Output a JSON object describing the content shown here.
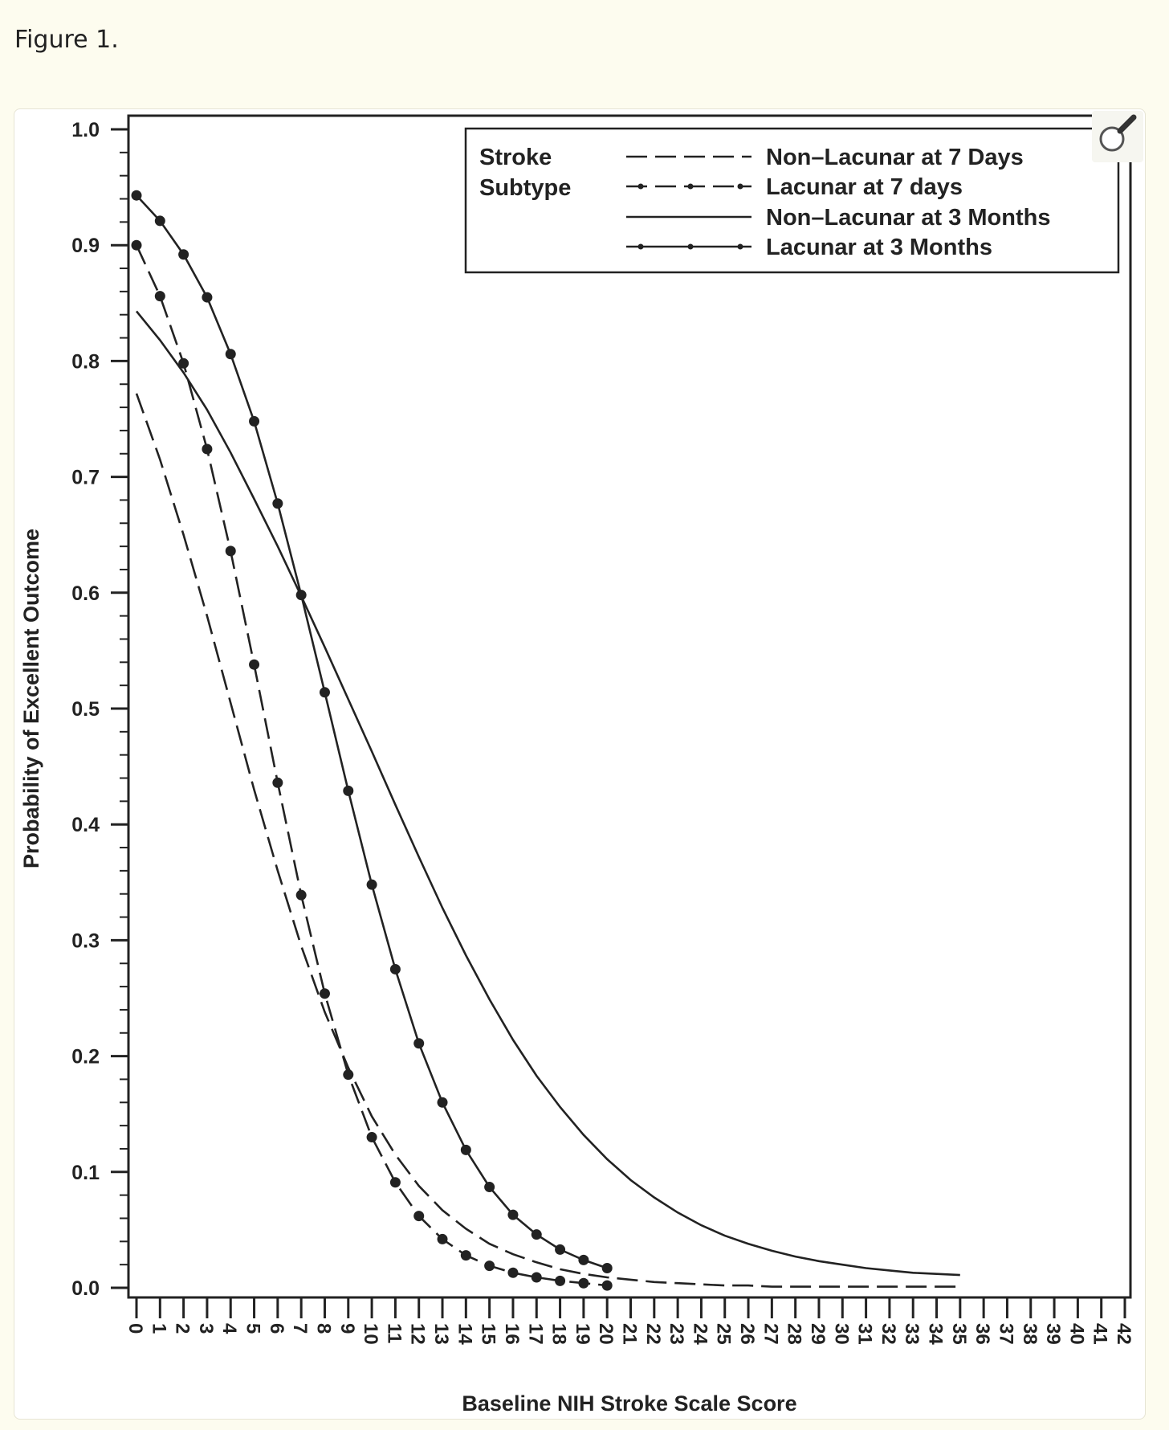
{
  "figure_label": "Figure 1.",
  "zoom_icon": "magnifier-icon",
  "colors": {
    "page_background": "#fdfcef",
    "card_background": "#ffffff",
    "ink": "#222222"
  },
  "chart_data": {
    "type": "line",
    "title": "",
    "xlabel": "Baseline NIH Stroke Scale Score",
    "ylabel": "Probability of Excellent Outcome",
    "xlim": [
      0,
      42
    ],
    "ylim": [
      0,
      1
    ],
    "x_ticks": [
      0,
      1,
      2,
      3,
      4,
      5,
      6,
      7,
      8,
      9,
      10,
      11,
      12,
      13,
      14,
      15,
      16,
      17,
      18,
      19,
      20,
      21,
      22,
      23,
      24,
      25,
      26,
      27,
      28,
      29,
      30,
      31,
      32,
      33,
      34,
      35,
      36,
      37,
      38,
      39,
      40,
      41,
      42
    ],
    "y_ticks": [
      "0.0",
      "0.1",
      "0.2",
      "0.3",
      "0.4",
      "0.5",
      "0.6",
      "0.7",
      "0.8",
      "0.9",
      "1.0"
    ],
    "legend": {
      "title_lines": [
        "Stroke",
        "Subtype"
      ],
      "position": "top-right",
      "entries": [
        "Non–Lacunar at 7 Days",
        "Lacunar at 7 days",
        "Non–Lacunar at 3 Months",
        "Lacunar at 3 Months"
      ]
    },
    "series": [
      {
        "name": "Non–Lacunar at 7 Days",
        "style": "dashed",
        "x": [
          0,
          1,
          2,
          3,
          4,
          5,
          6,
          7,
          8,
          9,
          10,
          11,
          12,
          13,
          14,
          15,
          16,
          17,
          18,
          19,
          20,
          21,
          22,
          23,
          24,
          25,
          26,
          27,
          28,
          29,
          30,
          31,
          32,
          33,
          34,
          35
        ],
        "values": [
          0.772,
          0.715,
          0.65,
          0.58,
          0.505,
          0.43,
          0.36,
          0.295,
          0.238,
          0.19,
          0.148,
          0.115,
          0.088,
          0.067,
          0.051,
          0.038,
          0.029,
          0.022,
          0.016,
          0.012,
          0.009,
          0.007,
          0.005,
          0.004,
          0.003,
          0.002,
          0.002,
          0.001,
          0.001,
          0.001,
          0.001,
          0.001,
          0.001,
          0.001,
          0.001,
          0.001
        ]
      },
      {
        "name": "Lacunar at 7 days",
        "style": "dashed-dots",
        "x": [
          0,
          1,
          2,
          3,
          4,
          5,
          6,
          7,
          8,
          9,
          10,
          11,
          12,
          13,
          14,
          15,
          16,
          17,
          18,
          19,
          20
        ],
        "values": [
          0.9,
          0.856,
          0.798,
          0.724,
          0.636,
          0.538,
          0.436,
          0.339,
          0.254,
          0.184,
          0.13,
          0.091,
          0.062,
          0.042,
          0.028,
          0.019,
          0.013,
          0.009,
          0.006,
          0.004,
          0.002
        ]
      },
      {
        "name": "Non–Lacunar at 3 Months",
        "style": "solid",
        "x": [
          0,
          1,
          2,
          3,
          4,
          5,
          6,
          7,
          8,
          9,
          10,
          11,
          12,
          13,
          14,
          15,
          16,
          17,
          18,
          19,
          20,
          21,
          22,
          23,
          24,
          25,
          26,
          27,
          28,
          29,
          30,
          31,
          32,
          33,
          34,
          35
        ],
        "values": [
          0.843,
          0.818,
          0.79,
          0.758,
          0.721,
          0.681,
          0.64,
          0.597,
          0.553,
          0.508,
          0.463,
          0.417,
          0.372,
          0.328,
          0.287,
          0.249,
          0.214,
          0.183,
          0.156,
          0.132,
          0.111,
          0.093,
          0.078,
          0.065,
          0.054,
          0.045,
          0.038,
          0.032,
          0.027,
          0.023,
          0.02,
          0.017,
          0.015,
          0.013,
          0.012,
          0.011
        ]
      },
      {
        "name": "Lacunar at 3 Months",
        "style": "solid-dots",
        "x": [
          0,
          1,
          2,
          3,
          4,
          5,
          6,
          7,
          8,
          9,
          10,
          11,
          12,
          13,
          14,
          15,
          16,
          17,
          18,
          19,
          20
        ],
        "values": [
          0.943,
          0.921,
          0.892,
          0.855,
          0.806,
          0.748,
          0.677,
          0.598,
          0.514,
          0.429,
          0.348,
          0.275,
          0.211,
          0.16,
          0.119,
          0.087,
          0.063,
          0.046,
          0.033,
          0.024,
          0.017
        ]
      }
    ]
  }
}
